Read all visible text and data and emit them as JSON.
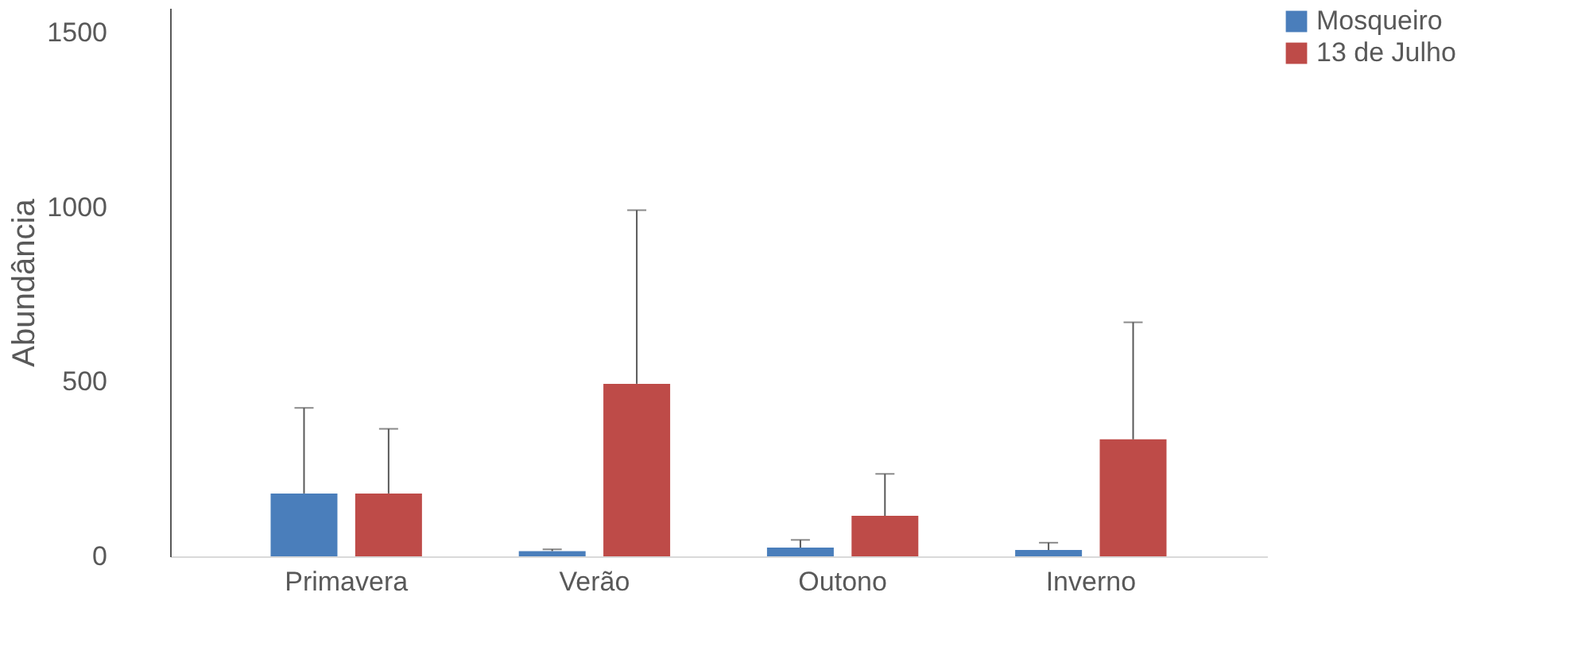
{
  "chart_data": {
    "type": "bar",
    "ylabel": "Abundância",
    "categories": [
      "Primavera",
      "Verão",
      "Outono",
      "Inverno"
    ],
    "series": [
      {
        "name": "Mosqueiro",
        "color": "#4a7ebb",
        "values": [
          180,
          15,
          25,
          18
        ],
        "errors": [
          [
            180,
            425
          ],
          [
            15,
            20
          ],
          [
            25,
            47
          ],
          [
            18,
            39
          ]
        ]
      },
      {
        "name": "13 de Julho",
        "color": "#be4b48",
        "values": [
          180,
          494,
          116,
          335
        ],
        "errors": [
          [
            180,
            365
          ],
          [
            494,
            991
          ],
          [
            116,
            236
          ],
          [
            335,
            670
          ]
        ]
      }
    ],
    "ylim": [
      0,
      1570
    ],
    "yticks": [
      0,
      500,
      1000,
      1500
    ],
    "grid": false,
    "legend": "right"
  }
}
